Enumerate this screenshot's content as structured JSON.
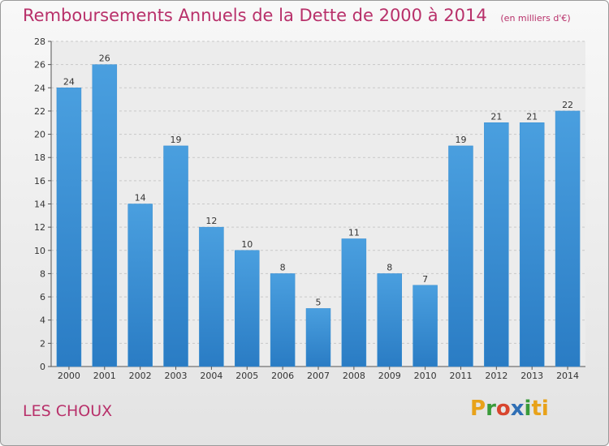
{
  "header": {
    "title": "Remboursements Annuels de la Dette de 2000 à 2014",
    "unit": "(en milliers d'€)"
  },
  "commune": "LES CHOUX",
  "logo": {
    "text": "Proxiti",
    "letters": [
      "P",
      "r",
      "o",
      "x",
      "i",
      "ti"
    ]
  },
  "colors": {
    "bar": "#4a9fdf",
    "bar_dark": "#2a7cc4",
    "title": "#b8306a"
  },
  "chart_data": {
    "type": "bar",
    "categories": [
      "2000",
      "2001",
      "2002",
      "2003",
      "2004",
      "2005",
      "2006",
      "2007",
      "2008",
      "2009",
      "2010",
      "2011",
      "2012",
      "2013",
      "2014"
    ],
    "values": [
      24,
      26,
      14,
      19,
      12,
      10,
      8,
      5,
      11,
      8,
      7,
      19,
      21,
      21,
      22
    ],
    "ylim": [
      0,
      28
    ],
    "yticks": [
      0,
      2,
      4,
      6,
      8,
      10,
      12,
      14,
      16,
      18,
      20,
      22,
      24,
      26,
      28
    ],
    "grid": true,
    "data_labels": true
  }
}
